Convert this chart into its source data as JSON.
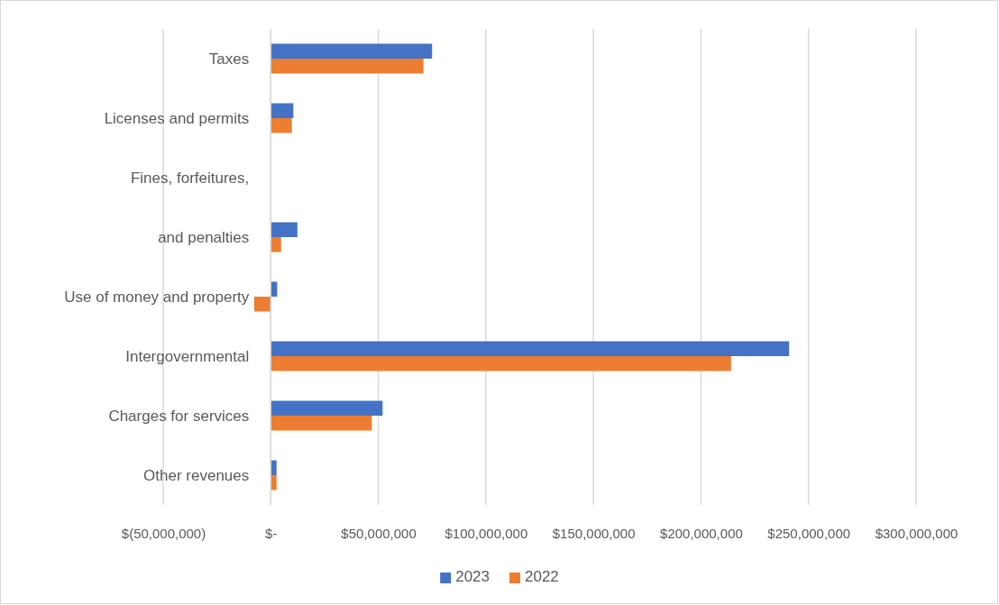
{
  "chart_data": {
    "type": "bar",
    "orientation": "horizontal",
    "categories": [
      "Taxes",
      "Licenses and permits",
      "Fines, forfeitures,\nand penalties",
      "Use of money and property",
      "Intergovernmental",
      "Charges for services",
      "Other revenues"
    ],
    "series": [
      {
        "name": "2023",
        "color": "#4472c4",
        "values": [
          75000000,
          10500000,
          12400000,
          3000000,
          241000000,
          52000000,
          2700000
        ]
      },
      {
        "name": "2022",
        "color": "#ed7d31",
        "values": [
          71000000,
          9800000,
          4800000,
          -7700000,
          214000000,
          47000000,
          2700000
        ]
      }
    ],
    "xlim": [
      -50000000,
      300000000
    ],
    "xticks": [
      {
        "value": -50000000,
        "label": "$(50,000,000)"
      },
      {
        "value": 0,
        "label": "$-"
      },
      {
        "value": 50000000,
        "label": "$50,000,000"
      },
      {
        "value": 100000000,
        "label": "$100,000,000"
      },
      {
        "value": 150000000,
        "label": "$150,000,000"
      },
      {
        "value": 200000000,
        "label": "$200,000,000"
      },
      {
        "value": 250000000,
        "label": "$250,000,000"
      },
      {
        "value": 300000000,
        "label": "$300,000,000"
      }
    ],
    "grid": "x",
    "legend": "bottom"
  }
}
